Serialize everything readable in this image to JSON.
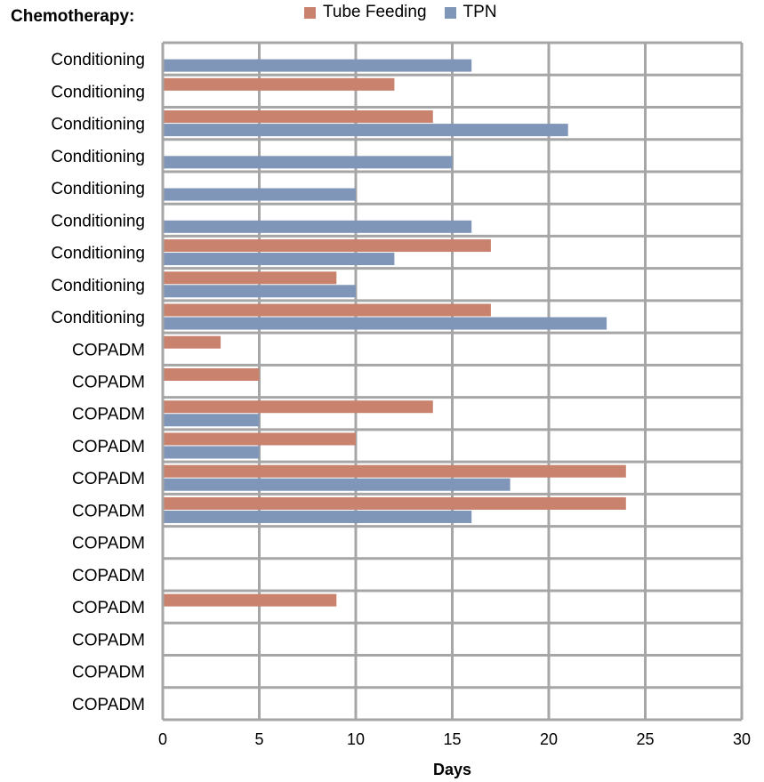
{
  "header": {
    "label": "Chemotherapy:"
  },
  "chart_data": {
    "type": "bar",
    "orientation": "horizontal",
    "xlabel": "Days",
    "xlim": [
      0,
      30
    ],
    "xticks": [
      "0",
      "5",
      "10",
      "15",
      "20",
      "25",
      "30"
    ],
    "grid": true,
    "legend_placement": "top-center",
    "categories": [
      "Conditioning",
      "Conditioning",
      "Conditioning",
      "Conditioning",
      "Conditioning",
      "Conditioning",
      "Conditioning",
      "Conditioning",
      "Conditioning",
      "COPADM",
      "COPADM",
      "COPADM",
      "COPADM",
      "COPADM",
      "COPADM",
      "COPADM",
      "COPADM",
      "COPADM",
      "COPADM",
      "COPADM",
      "COPADM"
    ],
    "series": [
      {
        "name": "Tube Feeding",
        "color": "#c8826e",
        "values": [
          0,
          12,
          14,
          0,
          0,
          0,
          17,
          9,
          17,
          3,
          5,
          14,
          10,
          24,
          24,
          0,
          0,
          9,
          0,
          0,
          0
        ]
      },
      {
        "name": "TPN",
        "color": "#8096b8",
        "values": [
          16,
          0,
          21,
          15,
          10,
          16,
          12,
          10,
          23,
          0,
          0,
          5,
          5,
          18,
          16,
          0,
          0,
          0,
          0,
          0,
          0
        ]
      }
    ]
  }
}
